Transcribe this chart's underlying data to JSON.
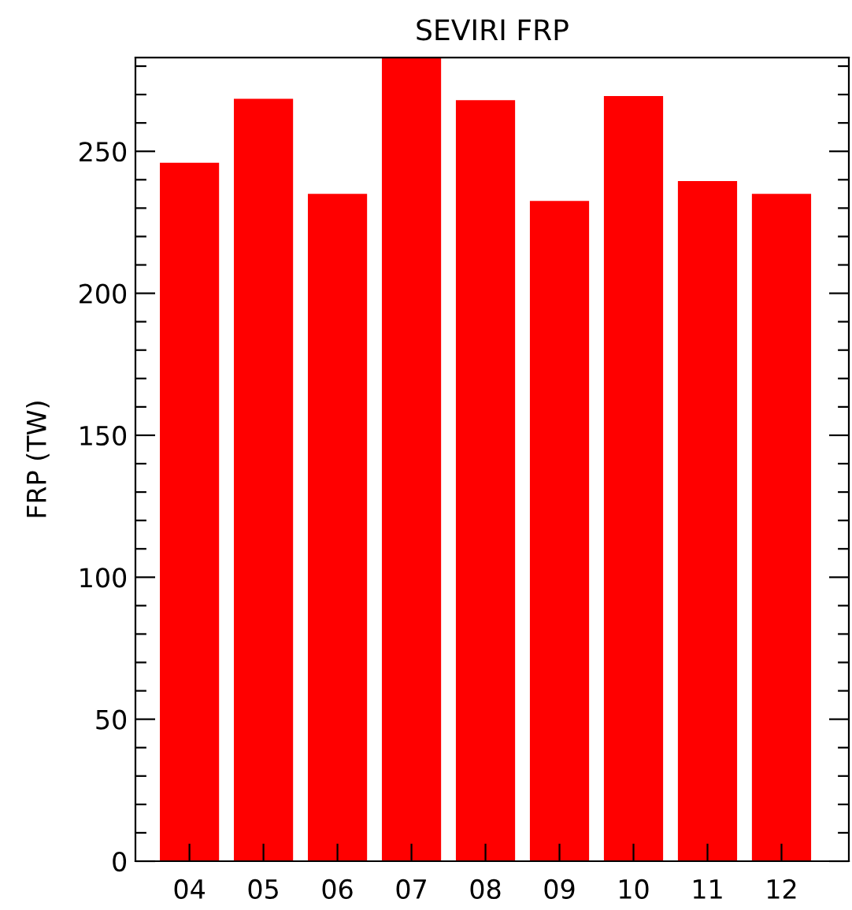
{
  "chart_data": {
    "type": "bar",
    "title": "SEVIRI FRP",
    "ylabel": "FRP (TW)",
    "categories": [
      "04",
      "05",
      "06",
      "07",
      "08",
      "09",
      "10",
      "11",
      "12"
    ],
    "values": [
      246,
      268.5,
      235,
      283,
      268,
      232.5,
      269.5,
      239.5,
      235
    ],
    "color": "#ff0000",
    "ylim": [
      0,
      283
    ],
    "yticks": [
      0,
      {
        "value": 10,
        "label": null
      },
      {
        "value": 20,
        "label": null
      },
      {
        "value": 30,
        "label": null
      },
      {
        "value": 40,
        "label": null
      },
      50,
      {
        "value": 60,
        "label": null
      },
      {
        "value": 70,
        "label": null
      },
      {
        "value": 80,
        "label": null
      },
      {
        "value": 90,
        "label": null
      },
      100,
      {
        "value": 110,
        "label": null
      },
      {
        "value": 120,
        "label": null
      },
      {
        "value": 130,
        "label": null
      },
      {
        "value": 140,
        "label": null
      },
      150,
      {
        "value": 160,
        "label": null
      },
      {
        "value": 170,
        "label": null
      },
      {
        "value": 180,
        "label": null
      },
      {
        "value": 190,
        "label": null
      },
      200,
      {
        "value": 210,
        "label": null
      },
      {
        "value": 220,
        "label": null
      },
      {
        "value": 230,
        "label": null
      },
      {
        "value": 240,
        "label": null
      },
      250,
      {
        "value": 260,
        "label": null
      },
      {
        "value": 270,
        "label": null
      },
      {
        "value": 280,
        "label": null
      }
    ],
    "grid": false,
    "legend": false
  }
}
